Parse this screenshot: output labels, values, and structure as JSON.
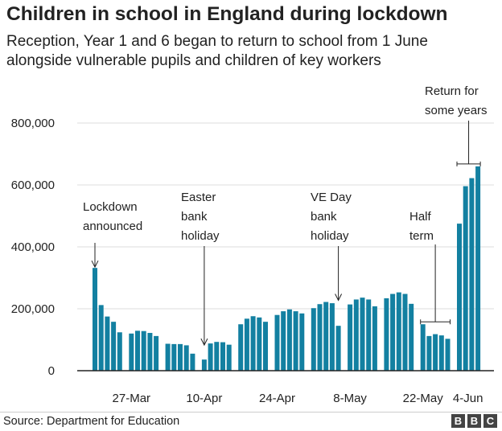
{
  "title": "Children in school in England during lockdown",
  "subtitle_line1": "Reception, Year 1 and 6 began to return to school from 1 June",
  "subtitle_line2": "alongside vulnerable pupils and children of key workers",
  "source": "Source: Department for Education",
  "logo": [
    "B",
    "B",
    "C"
  ],
  "colors": {
    "bar": "#1380a1",
    "axis": "#222222",
    "grid": "#dddddd"
  },
  "chart_data": {
    "type": "bar",
    "ylim": [
      0,
      800000
    ],
    "yticks": [
      0,
      200000,
      400000,
      600000,
      800000
    ],
    "ytick_labels": [
      "0",
      "200,000",
      "400,000",
      "600,000",
      "800,000"
    ],
    "xtick_labels": [
      "27-Mar",
      "10-Apr",
      "24-Apr",
      "8-May",
      "22-May",
      "4-Jun"
    ],
    "weeks": [
      [
        332000,
        212000,
        175000,
        158000,
        124000
      ],
      [
        120000,
        129000,
        128000,
        122000,
        112000
      ],
      [
        87000,
        86000,
        86000,
        82000,
        55000
      ],
      [
        36000,
        88000,
        93000,
        92000,
        84000
      ],
      [
        150000,
        168000,
        176000,
        172000,
        158000
      ],
      [
        180000,
        192000,
        198000,
        192000,
        185000
      ],
      [
        202000,
        215000,
        222000,
        218000,
        145000
      ],
      [
        214000,
        230000,
        236000,
        230000,
        208000
      ],
      [
        234000,
        248000,
        253000,
        248000,
        216000
      ],
      [
        150000,
        112000,
        118000,
        114000,
        103000
      ],
      [
        475000,
        596000,
        622000,
        660000
      ]
    ],
    "annotations": [
      {
        "lines": [
          "Lockdown",
          "announced"
        ]
      },
      {
        "lines": [
          "Easter",
          "bank",
          "holiday"
        ]
      },
      {
        "lines": [
          "VE Day",
          "bank",
          "holiday"
        ]
      },
      {
        "lines": [
          "Half",
          "term"
        ]
      },
      {
        "lines": [
          "Return for",
          "some years"
        ]
      }
    ]
  }
}
